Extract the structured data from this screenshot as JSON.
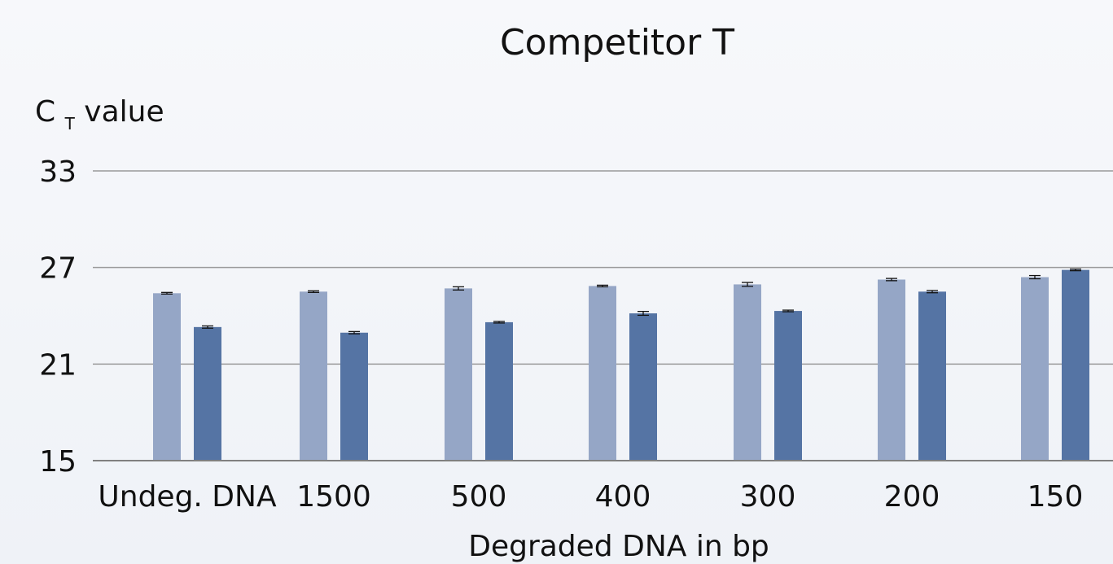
{
  "chart_data": {
    "type": "bar",
    "title": "Competitor T",
    "ylabel_main": "C",
    "ylabel_sub": "T",
    "ylabel_suffix": " value",
    "xlabel": "Degraded DNA in bp",
    "categories": [
      "Undeg. DNA",
      "1500",
      "500",
      "400",
      "300",
      "200",
      "150"
    ],
    "series": [
      {
        "values": [
          25.4,
          25.5,
          25.7,
          25.85,
          25.95,
          26.25,
          26.4
        ],
        "errors": [
          0.05,
          0.05,
          0.1,
          0.05,
          0.12,
          0.07,
          0.1
        ]
      },
      {
        "values": [
          23.3,
          22.95,
          23.6,
          24.15,
          24.3,
          25.5,
          26.85
        ],
        "errors": [
          0.07,
          0.07,
          0.05,
          0.12,
          0.05,
          0.07,
          0.05
        ]
      }
    ],
    "yticks": [
      15,
      21,
      27,
      33
    ],
    "ylim": [
      15,
      33
    ],
    "grid": true,
    "colors": {
      "series_light": "#95a6c6",
      "series_dark": "#5574a4",
      "grid": "#9a9a9a",
      "axis": "#808080",
      "error_bar": "#111111"
    }
  }
}
